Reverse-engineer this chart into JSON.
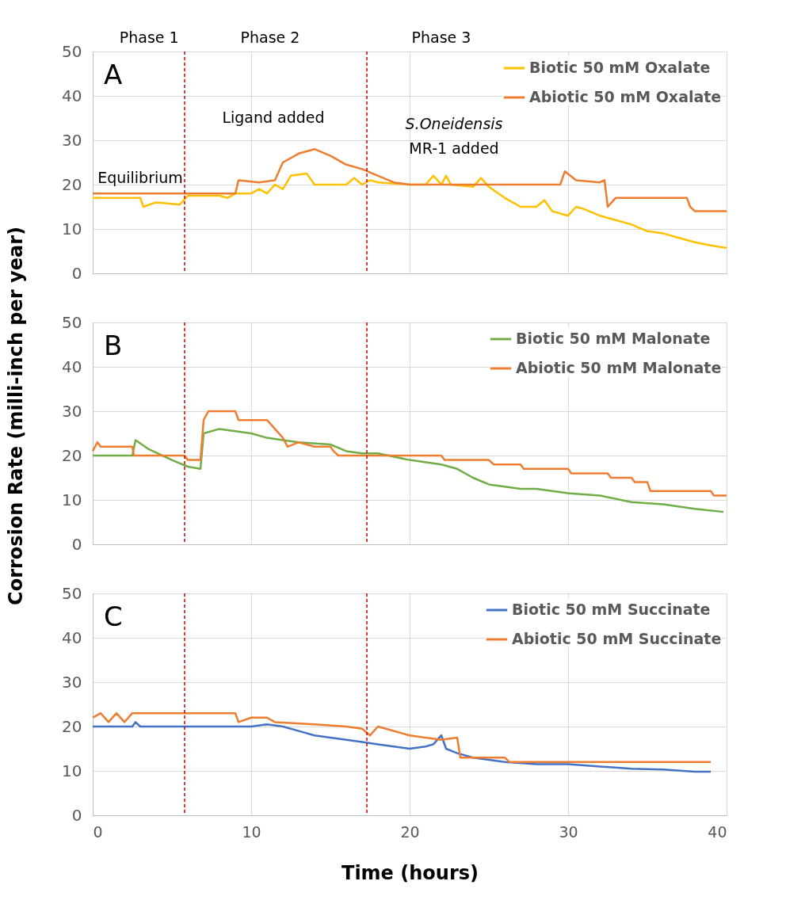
{
  "chart_data": [
    {
      "type": "line",
      "title": "A",
      "xlim": [
        0,
        40
      ],
      "xticks": [
        0,
        10,
        20,
        30,
        40
      ],
      "ylim": [
        0,
        50
      ],
      "yticks": [
        0,
        10,
        20,
        30,
        40,
        50
      ],
      "grid": true,
      "legend": "top right",
      "tick_labels": "y",
      "line_style": "solid",
      "marker": "none",
      "annotations": [
        "Phase 1",
        "Phase 2",
        "Phase 3",
        "Equilibrium",
        "Ligand added",
        "S.Oneidensis",
        "MR-1 added"
      ],
      "ref_lines": [
        {
          "axis": "x",
          "value": 5.8,
          "color": "#c00000",
          "line_style": "dashed"
        },
        {
          "axis": "x",
          "value": 17.3,
          "color": "#c00000",
          "line_style": "dashed"
        }
      ],
      "series": [
        {
          "name": "Biotic 50 mM Oxalate",
          "color": "#ffc000",
          "x": [
            0,
            3,
            3.2,
            4,
            5.5,
            6,
            7,
            8,
            8.5,
            9,
            10,
            10.5,
            11,
            11.5,
            12,
            12.5,
            13.5,
            14,
            16,
            16.5,
            17,
            17.5,
            18,
            20,
            21,
            21.5,
            22,
            22.3,
            22.6,
            24,
            24.5,
            25,
            26,
            27,
            28,
            28.5,
            29,
            30,
            30.5,
            31,
            32,
            33,
            34,
            35,
            36,
            37,
            38,
            39,
            40
          ],
          "values": [
            17,
            17,
            15,
            16,
            15.5,
            17.5,
            17.5,
            17.5,
            17,
            18,
            18,
            19,
            18,
            20,
            19,
            22,
            22.5,
            20,
            20,
            21.5,
            20,
            21,
            20.5,
            20,
            20,
            22,
            20,
            22,
            20,
            19.5,
            21.5,
            19.5,
            17,
            15,
            15,
            16.5,
            14,
            13,
            15,
            14.5,
            13,
            12,
            11,
            9.5,
            9,
            8,
            7,
            6.3,
            5.7
          ]
        },
        {
          "name": "Abiotic 50 mM Oxalate",
          "color": "#ed7d31",
          "x": [
            0,
            9,
            9.2,
            10.5,
            11.5,
            12,
            13,
            14,
            15,
            16,
            17,
            18,
            19,
            20,
            29.5,
            29.8,
            30.5,
            32,
            32.3,
            32.5,
            33,
            37.5,
            37.7,
            38,
            40
          ],
          "values": [
            18,
            18,
            21,
            20.5,
            21,
            25,
            27,
            28,
            26.5,
            24.5,
            23.5,
            22,
            20.5,
            20,
            20,
            23,
            21,
            20.5,
            21,
            15,
            17,
            17,
            15,
            14,
            14
          ]
        }
      ]
    },
    {
      "type": "line",
      "title": "B",
      "ylabel": "Corrosion Rate (milli-inch per year)",
      "xlim": [
        0,
        40
      ],
      "xticks": [
        0,
        10,
        20,
        30,
        40
      ],
      "ylim": [
        0,
        50
      ],
      "yticks": [
        0,
        10,
        20,
        30,
        40,
        50
      ],
      "grid": true,
      "legend": "top right",
      "tick_labels": "y",
      "line_style": "solid",
      "marker": "none",
      "ref_lines": [
        {
          "axis": "x",
          "value": 5.8,
          "color": "#c00000",
          "line_style": "dashed"
        },
        {
          "axis": "x",
          "value": 17.3,
          "color": "#c00000",
          "line_style": "dashed"
        }
      ],
      "series": [
        {
          "name": "Biotic 50 mM Malonate",
          "color": "#70ad47",
          "x": [
            0,
            2.5,
            2.7,
            3.5,
            5,
            6,
            6.8,
            7,
            8,
            9,
            10,
            11,
            12,
            13,
            15,
            16,
            17,
            18,
            20,
            22,
            23,
            24,
            25,
            26,
            27,
            28,
            29,
            30,
            32,
            34,
            36,
            38,
            39.8
          ],
          "values": [
            20,
            20,
            23.5,
            21.5,
            19,
            17.5,
            17,
            25,
            26,
            25.5,
            25,
            24,
            23.5,
            23,
            22.5,
            21,
            20.5,
            20.5,
            19,
            18,
            17,
            15,
            13.5,
            13,
            12.5,
            12.5,
            12,
            11.5,
            11,
            9.5,
            9,
            8,
            7.3
          ]
        },
        {
          "name": "Abiotic 50 mM Malonate",
          "color": "#ed7d31",
          "x": [
            0,
            0.3,
            0.5,
            2.5,
            2.6,
            5.8,
            6,
            6.8,
            7,
            7.3,
            9,
            9.2,
            11,
            12,
            12.3,
            13,
            14,
            15,
            15.2,
            15.5,
            18,
            22,
            22.2,
            25,
            25.3,
            27,
            27.2,
            30,
            30.2,
            32.5,
            32.7,
            34,
            34.2,
            35,
            35.2,
            39,
            39.2,
            40
          ],
          "values": [
            21,
            23,
            22,
            22,
            20,
            20,
            19,
            19,
            28,
            30,
            30,
            28,
            28,
            24,
            22,
            23,
            22,
            22,
            21,
            20,
            20,
            20,
            19,
            19,
            18,
            18,
            17,
            17,
            16,
            16,
            15,
            15,
            14,
            14,
            12,
            12,
            11,
            11
          ]
        }
      ]
    },
    {
      "type": "line",
      "title": "C",
      "xlabel": "Time (hours)",
      "xlim": [
        0,
        40
      ],
      "xticks": [
        0,
        10,
        20,
        30,
        40
      ],
      "ylim": [
        0,
        50
      ],
      "yticks": [
        0,
        10,
        20,
        30,
        40,
        50
      ],
      "grid": true,
      "legend": "top right",
      "line_style": "solid",
      "marker": "none",
      "ref_lines": [
        {
          "axis": "x",
          "value": 5.8,
          "color": "#c00000",
          "line_style": "dashed"
        },
        {
          "axis": "x",
          "value": 17.3,
          "color": "#c00000",
          "line_style": "dashed"
        }
      ],
      "series": [
        {
          "name": "Biotic 50 mM Succinate",
          "color": "#4472c4",
          "x": [
            0,
            2.5,
            2.7,
            3,
            10,
            11,
            12,
            13,
            14,
            15,
            16,
            17,
            18,
            19,
            20,
            21,
            21.5,
            22,
            22.3,
            23,
            24,
            26,
            28,
            30,
            32,
            34,
            36,
            38,
            39
          ],
          "values": [
            20,
            20,
            21,
            20,
            20,
            20.5,
            20,
            19,
            18,
            17.5,
            17,
            16.5,
            16,
            15.5,
            15,
            15.5,
            16,
            18,
            15,
            14,
            13,
            12,
            11.5,
            11.5,
            11,
            10.5,
            10.3,
            9.8,
            9.8
          ]
        },
        {
          "name": "Abiotic 50 mM Succinate",
          "color": "#ed7d31",
          "x": [
            0,
            0.5,
            1,
            1.5,
            2,
            2.5,
            9,
            9.2,
            10,
            11,
            11.5,
            14,
            16,
            17,
            17.5,
            18,
            20,
            21,
            22,
            23,
            23.2,
            26,
            26.3,
            39
          ],
          "values": [
            22,
            23,
            21,
            23,
            21,
            23,
            23,
            21,
            22,
            22,
            21,
            20.5,
            20,
            19.5,
            18,
            20,
            18,
            17.5,
            17,
            17.5,
            13,
            13,
            12,
            12
          ]
        }
      ]
    }
  ]
}
